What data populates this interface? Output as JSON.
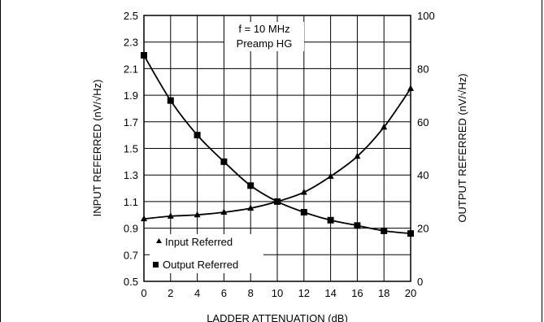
{
  "chart_data": {
    "type": "line",
    "annotation": [
      "f = 10 MHz",
      "Preamp HG"
    ],
    "xlabel": "LADDER ATTENUATION (dB)",
    "ylabel_left": "INPUT REFERRED (nV/√Hz)",
    "ylabel_right": "OUTPUT REFERRED (nV/√Hz)",
    "xlim": [
      0,
      20
    ],
    "ylim_left": [
      0.5,
      2.5
    ],
    "ylim_right": [
      0,
      100
    ],
    "x_ticks": [
      0,
      2,
      4,
      6,
      8,
      10,
      12,
      14,
      16,
      18,
      20
    ],
    "y_left_ticks": [
      0.5,
      0.7,
      0.9,
      1.1,
      1.3,
      1.5,
      1.7,
      1.9,
      2.1,
      2.3,
      2.5
    ],
    "y_left_tick_labels": [
      "0.5",
      "0.7",
      "0.9",
      "1.1",
      "1.3",
      "1.5",
      "1.7",
      "1.9",
      "2.1",
      "2.3",
      "2.5"
    ],
    "y_right_ticks": [
      0,
      20,
      40,
      60,
      80,
      100
    ],
    "grid": true,
    "legend_position": "bottom-left",
    "series": [
      {
        "name": "Input Referred",
        "axis": "left",
        "marker": "triangle",
        "x": [
          0,
          2,
          4,
          6,
          8,
          10,
          12,
          14,
          16,
          18,
          20
        ],
        "values": [
          0.97,
          0.99,
          1.0,
          1.02,
          1.05,
          1.1,
          1.17,
          1.29,
          1.44,
          1.66,
          1.95
        ]
      },
      {
        "name": "Output Referred",
        "axis": "right",
        "marker": "square",
        "x": [
          0,
          2,
          4,
          6,
          8,
          10,
          12,
          14,
          16,
          18,
          20
        ],
        "values": [
          85,
          68,
          55,
          45,
          36,
          30,
          26,
          23,
          21,
          19,
          18
        ]
      }
    ]
  }
}
